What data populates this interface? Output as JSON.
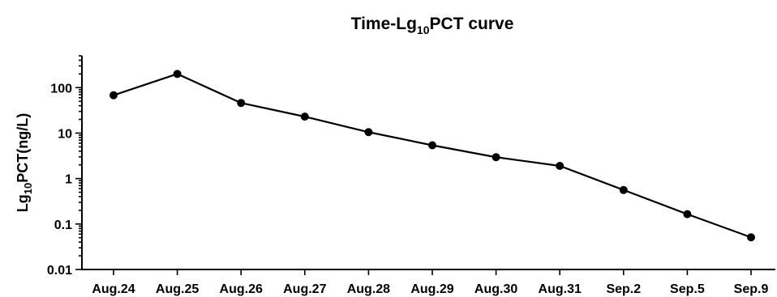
{
  "chart_data": {
    "type": "line",
    "title_main": "Time-Lg",
    "title_sub": "10",
    "title_rest": "PCT curve",
    "ylabel_main": "Lg",
    "ylabel_sub": "10",
    "ylabel_rest": "PCT(ng/L)",
    "xlabel": "",
    "categories": [
      "Aug.24",
      "Aug.25",
      "Aug.26",
      "Aug.27",
      "Aug.28",
      "Aug.29",
      "Aug.30",
      "Aug.31",
      "Sep.2",
      "Sep.5",
      "Sep.9"
    ],
    "values": [
      68,
      200,
      46,
      23,
      10.5,
      5.4,
      2.95,
      1.9,
      0.56,
      0.165,
      0.051
    ],
    "y_scale": "log",
    "ylim": [
      0.01,
      500
    ],
    "yticks": [
      0.01,
      0.1,
      1,
      10,
      100
    ],
    "ytick_labels": [
      "0.01",
      "0.1",
      "1",
      "10",
      "100"
    ],
    "grid": false,
    "legend": "none",
    "line_color": "#000000",
    "marker_color": "#000000"
  }
}
